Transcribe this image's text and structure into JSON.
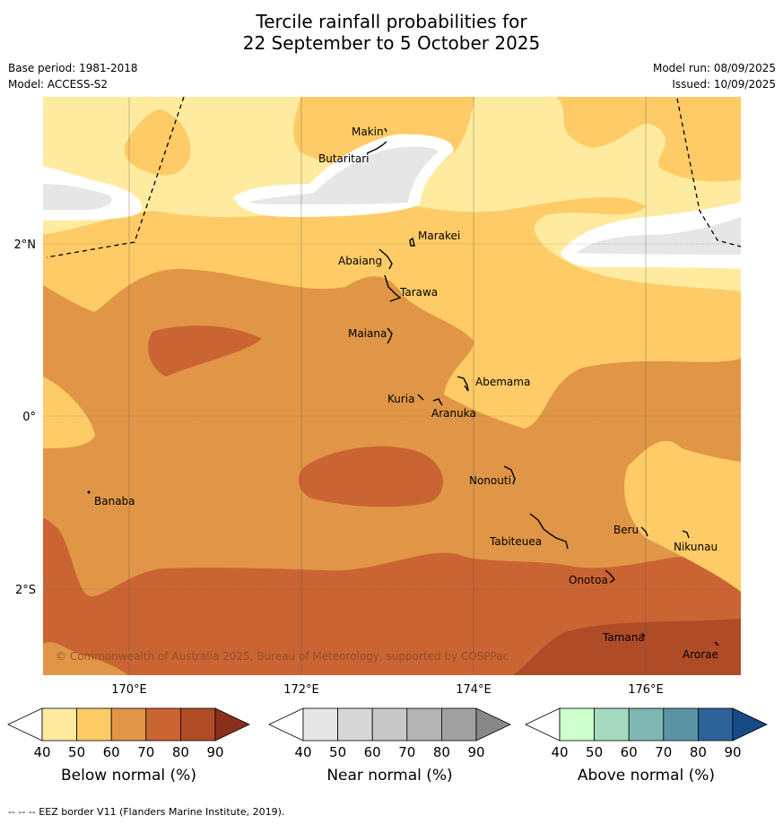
{
  "title": {
    "line1": "Tercile rainfall probabilities for",
    "line2": "22 September to 5 October 2025"
  },
  "info": {
    "base_period": "Base period: 1981-2018",
    "model": "Model: ACCESS-S2",
    "model_run": "Model run: 08/09/2025",
    "issued": "Issued: 10/09/2025"
  },
  "axes": {
    "lat_labels": [
      "2°N",
      "0°",
      "2°S"
    ],
    "lon_labels": [
      "170°E",
      "172°E",
      "174°E",
      "176°E"
    ]
  },
  "places": [
    "Makin",
    "Butaritari",
    "Marakei",
    "Abaiang",
    "Tarawa",
    "Maiana",
    "Abemama",
    "Kuria",
    "Aranuka",
    "Banaba",
    "Nonouti",
    "Beru",
    "Tabiteuea",
    "Nikunau",
    "Onotoa",
    "Tamana",
    "Arorae"
  ],
  "copyright": "© Commonwealth of Australia 2025, Bureau of Meteorology, supported by COSPPac",
  "legends": [
    {
      "name": "Below normal (%)",
      "ticks": [
        "40",
        "50",
        "60",
        "70",
        "80",
        "90"
      ],
      "colors": [
        "#ffffff",
        "#ffeb9f",
        "#fecb66",
        "#e09646",
        "#cb6433",
        "#b04b28",
        "#8b2f1b"
      ]
    },
    {
      "name": "Near normal (%)",
      "ticks": [
        "40",
        "50",
        "60",
        "70",
        "80",
        "90"
      ],
      "colors": [
        "#ffffff",
        "#e6e6e6",
        "#d7d7d7",
        "#c8c8c8",
        "#b4b4b4",
        "#a0a0a0",
        "#888888"
      ]
    },
    {
      "name": "Above normal (%)",
      "ticks": [
        "40",
        "50",
        "60",
        "70",
        "80",
        "90"
      ],
      "colors": [
        "#ffffff",
        "#ccffcc",
        "#a5d9c0",
        "#7fb7b2",
        "#5a94a4",
        "#2d6399",
        "#174a86"
      ]
    }
  ],
  "footnote": "--  --  -- EEZ border V11 (Flanders Marine Institute, 2019)."
}
